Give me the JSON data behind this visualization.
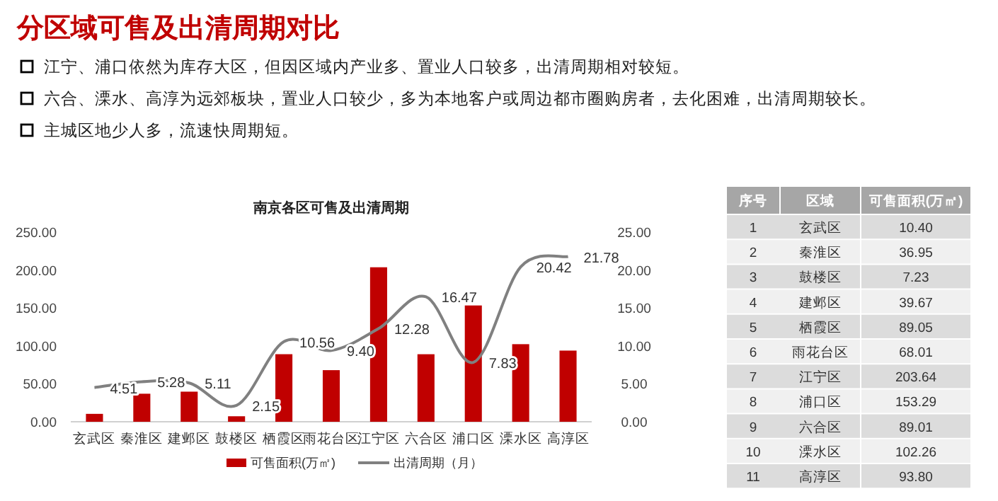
{
  "chart_data": [
    {
      "type": "bar",
      "title": "南京各区可售及出清周期",
      "annotations": [
        "分区域可售及出清周期对比",
        "江宁、浦口依然为库存大区，但因区域内产业多、置业人口较多，出清周期相对较短。",
        "六合、溧水、高淳为远郊板块，置业人口较少，多为本地客户或周边都市圈购房者，去化困难，出清周期较长。",
        "主城区地少人多，流速快周期短。"
      ],
      "categories": [
        "玄武区",
        "秦淮区",
        "建邺区",
        "鼓楼区",
        "栖霞区",
        "雨花台区",
        "江宁区",
        "六合区",
        "浦口区",
        "溧水区",
        "高淳区"
      ],
      "series": [
        {
          "name": "可售面积(万㎡)",
          "type": "bar",
          "color": "#c00000",
          "values": [
            10.4,
            36.95,
            39.67,
            7.23,
            89.05,
            68.01,
            203.64,
            89.01,
            153.29,
            102.26,
            93.8
          ]
        },
        {
          "name": "出清周期（月）",
          "type": "line",
          "axis": "y2",
          "color": "#808080",
          "values": [
            4.51,
            5.28,
            5.11,
            2.15,
            10.56,
            9.4,
            12.28,
            16.47,
            7.83,
            20.42,
            21.78
          ],
          "value_labels": [
            "4.51",
            "5.28",
            "5.11",
            "2.15",
            "10.56",
            "9.40",
            "12.28",
            "16.47",
            "7.83",
            "20.42",
            "21.78"
          ]
        }
      ],
      "ylim": [
        0,
        250
      ],
      "yticks": [
        {
          "value": 0,
          "label": "0.00"
        },
        {
          "value": 50,
          "label": "50.00"
        },
        {
          "value": 100,
          "label": "100.00"
        },
        {
          "value": 150,
          "label": "150.00"
        },
        {
          "value": 200,
          "label": "200.00"
        },
        {
          "value": 250,
          "label": "250.00"
        }
      ],
      "y2lim": [
        0,
        25
      ],
      "y2ticks": [
        {
          "value": 0,
          "label": "0.00"
        },
        {
          "value": 5,
          "label": "5.00"
        },
        {
          "value": 10,
          "label": "10.00"
        },
        {
          "value": 15,
          "label": "15.00"
        },
        {
          "value": 20,
          "label": "20.00"
        },
        {
          "value": 25,
          "label": "25.00"
        }
      ],
      "legend": "bottom",
      "grid": false
    },
    {
      "type": "heatmap",
      "ylabel": "序号",
      "categories": [
        "区域",
        "可售面积(万㎡)"
      ],
      "y_categories": [
        "1",
        "2",
        "3",
        "4",
        "5",
        "6",
        "7",
        "8",
        "9",
        "10",
        "11"
      ],
      "cells": [
        [
          null,
          null
        ],
        [
          null,
          null
        ],
        [
          null,
          null
        ],
        [
          null,
          null
        ],
        [
          null,
          null
        ],
        [
          null,
          null
        ],
        [
          null,
          null
        ],
        [
          null,
          null
        ],
        [
          null,
          null
        ],
        [
          null,
          null
        ],
        [
          null,
          null
        ]
      ],
      "cell_labels": [
        [
          "玄武区",
          "10.40"
        ],
        [
          "秦淮区",
          "36.95"
        ],
        [
          "鼓楼区",
          "7.23"
        ],
        [
          "建邺区",
          "39.67"
        ],
        [
          "栖霞区",
          "89.05"
        ],
        [
          "雨花台区",
          "68.01"
        ],
        [
          "江宁区",
          "203.64"
        ],
        [
          "浦口区",
          "153.29"
        ],
        [
          "六合区",
          "89.01"
        ],
        [
          "溧水区",
          "102.26"
        ],
        [
          "高淳区",
          "93.80"
        ]
      ]
    }
  ]
}
